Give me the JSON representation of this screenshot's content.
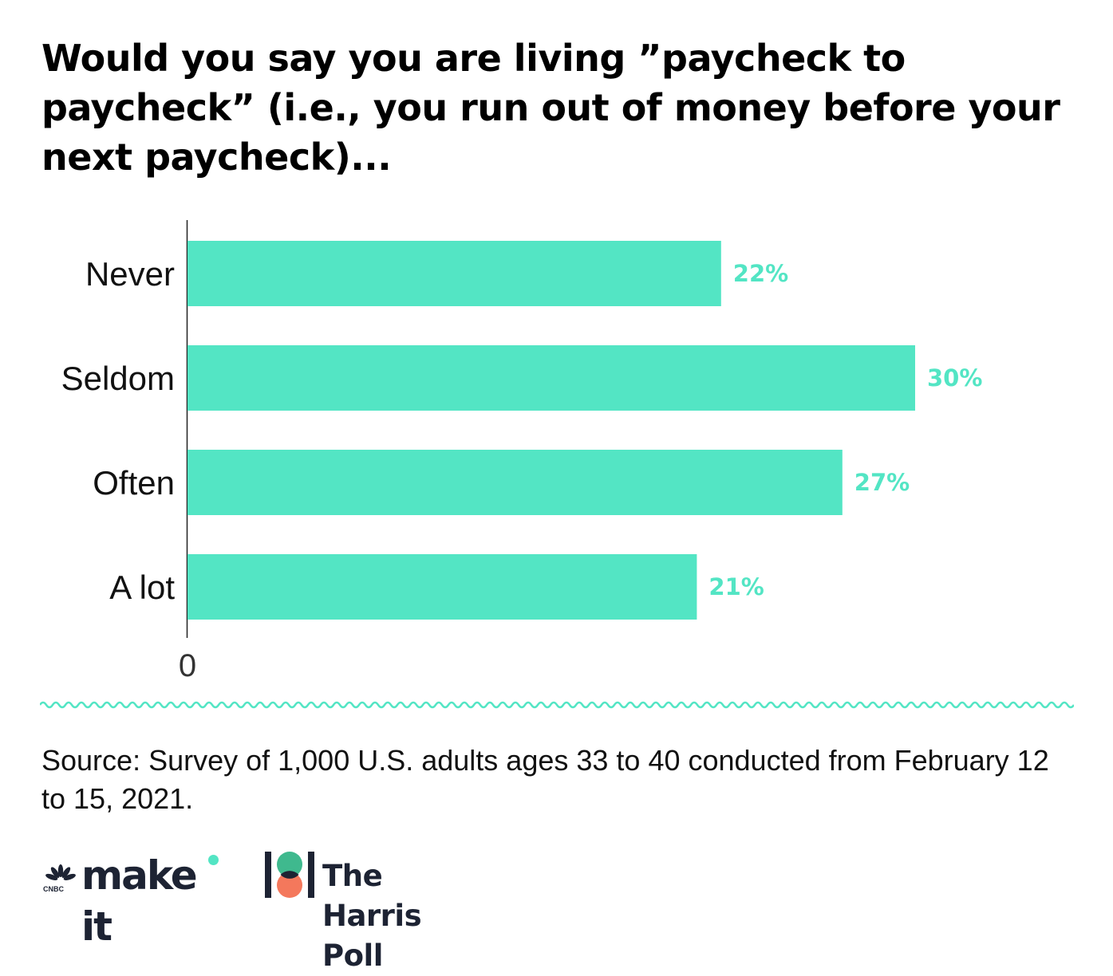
{
  "chart_data": {
    "type": "bar",
    "orientation": "horizontal",
    "title": "Would you say you are living ”paycheck to paycheck” (i.e., you run out of money before your next paycheck)...",
    "categories": [
      "Never",
      "Seldom",
      "Often",
      "A lot"
    ],
    "values": [
      22,
      30,
      27,
      21
    ],
    "value_labels": [
      "22%",
      "30%",
      "27%",
      "21%"
    ],
    "xlim": [
      0,
      40
    ],
    "x_ticks": [
      "0"
    ],
    "xlabel": "",
    "ylabel": "",
    "grid": false,
    "bar_color": "#53e5c4",
    "label_color": "#53e5c4"
  },
  "source": "Source: Survey of 1,000 U.S. adults ages 33 to 40 conducted from February 12 to 15, 2021.",
  "logos": {
    "cnbc": "CNBC",
    "make_it": "make it",
    "harris": "The Harris Poll"
  },
  "colors": {
    "accent": "#53e5c4",
    "harris_green": "#3fb98e",
    "harris_coral": "#f4785c",
    "logo_text": "#1d2333"
  },
  "icons": {
    "cnbc": "peacock-icon",
    "harris": "harris-poll-icon"
  }
}
